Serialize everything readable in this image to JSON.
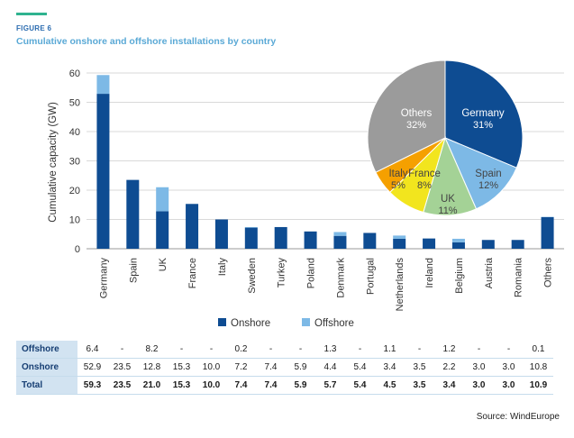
{
  "figure_label": "FIGURE 6",
  "title": "Cumulative onshore and offshore installations by country",
  "source": "Source: WindEurope",
  "colors": {
    "onshore": "#0e4c92",
    "offshore": "#7db9e6",
    "accent": "#2fb38f",
    "title": "#5aa9d6"
  },
  "chart_data": [
    {
      "type": "bar",
      "stacked": true,
      "ylabel": "Cumulative capacity (GW)",
      "ylim": [
        0,
        60
      ],
      "yticks": [
        0,
        10,
        20,
        30,
        40,
        50,
        60
      ],
      "categories": [
        "Germany",
        "Spain",
        "UK",
        "France",
        "Italy",
        "Sweden",
        "Turkey",
        "Poland",
        "Denmark",
        "Portugal",
        "Netherlands",
        "Ireland",
        "Belgium",
        "Austria",
        "Romania",
        "Others"
      ],
      "series": [
        {
          "name": "Onshore",
          "values": [
            52.9,
            23.5,
            12.8,
            15.3,
            10.0,
            7.2,
            7.4,
            5.9,
            4.4,
            5.4,
            3.4,
            3.5,
            2.2,
            3.0,
            3.0,
            10.8
          ]
        },
        {
          "name": "Offshore",
          "values": [
            6.4,
            0,
            8.2,
            0,
            0,
            0.2,
            0,
            0,
            1.3,
            0,
            1.1,
            0,
            1.2,
            0,
            0,
            0.1
          ]
        }
      ],
      "legend": [
        "Onshore",
        "Offshore"
      ],
      "legend_position": "bottom"
    },
    {
      "type": "pie",
      "slices": [
        {
          "label": "Germany",
          "value": 31,
          "pct": "31%",
          "color": "#0e4c92"
        },
        {
          "label": "Spain",
          "value": 12,
          "pct": "12%",
          "color": "#7db9e6"
        },
        {
          "label": "UK",
          "value": 11,
          "pct": "11%",
          "color": "#a4d296"
        },
        {
          "label": "France",
          "value": 8,
          "pct": "8%",
          "color": "#f2e51e"
        },
        {
          "label": "Italy",
          "value": 5,
          "pct": "5%",
          "color": "#f5a000"
        },
        {
          "label": "Others",
          "value": 32,
          "pct": "32%",
          "color": "#9b9b9b"
        }
      ]
    }
  ],
  "table": {
    "rows": [
      {
        "label": "Offshore",
        "values": [
          "6.4",
          "-",
          "8.2",
          "-",
          "-",
          "0.2",
          "-",
          "-",
          "1.3",
          "-",
          "1.1",
          "-",
          "1.2",
          "-",
          "-",
          "0.1"
        ]
      },
      {
        "label": "Onshore",
        "values": [
          "52.9",
          "23.5",
          "12.8",
          "15.3",
          "10.0",
          "7.2",
          "7.4",
          "5.9",
          "4.4",
          "5.4",
          "3.4",
          "3.5",
          "2.2",
          "3.0",
          "3.0",
          "10.8"
        ]
      },
      {
        "label": "Total",
        "values": [
          "59.3",
          "23.5",
          "21.0",
          "15.3",
          "10.0",
          "7.4",
          "7.4",
          "5.9",
          "5.7",
          "5.4",
          "4.5",
          "3.5",
          "3.4",
          "3.0",
          "3.0",
          "10.9"
        ]
      }
    ]
  }
}
